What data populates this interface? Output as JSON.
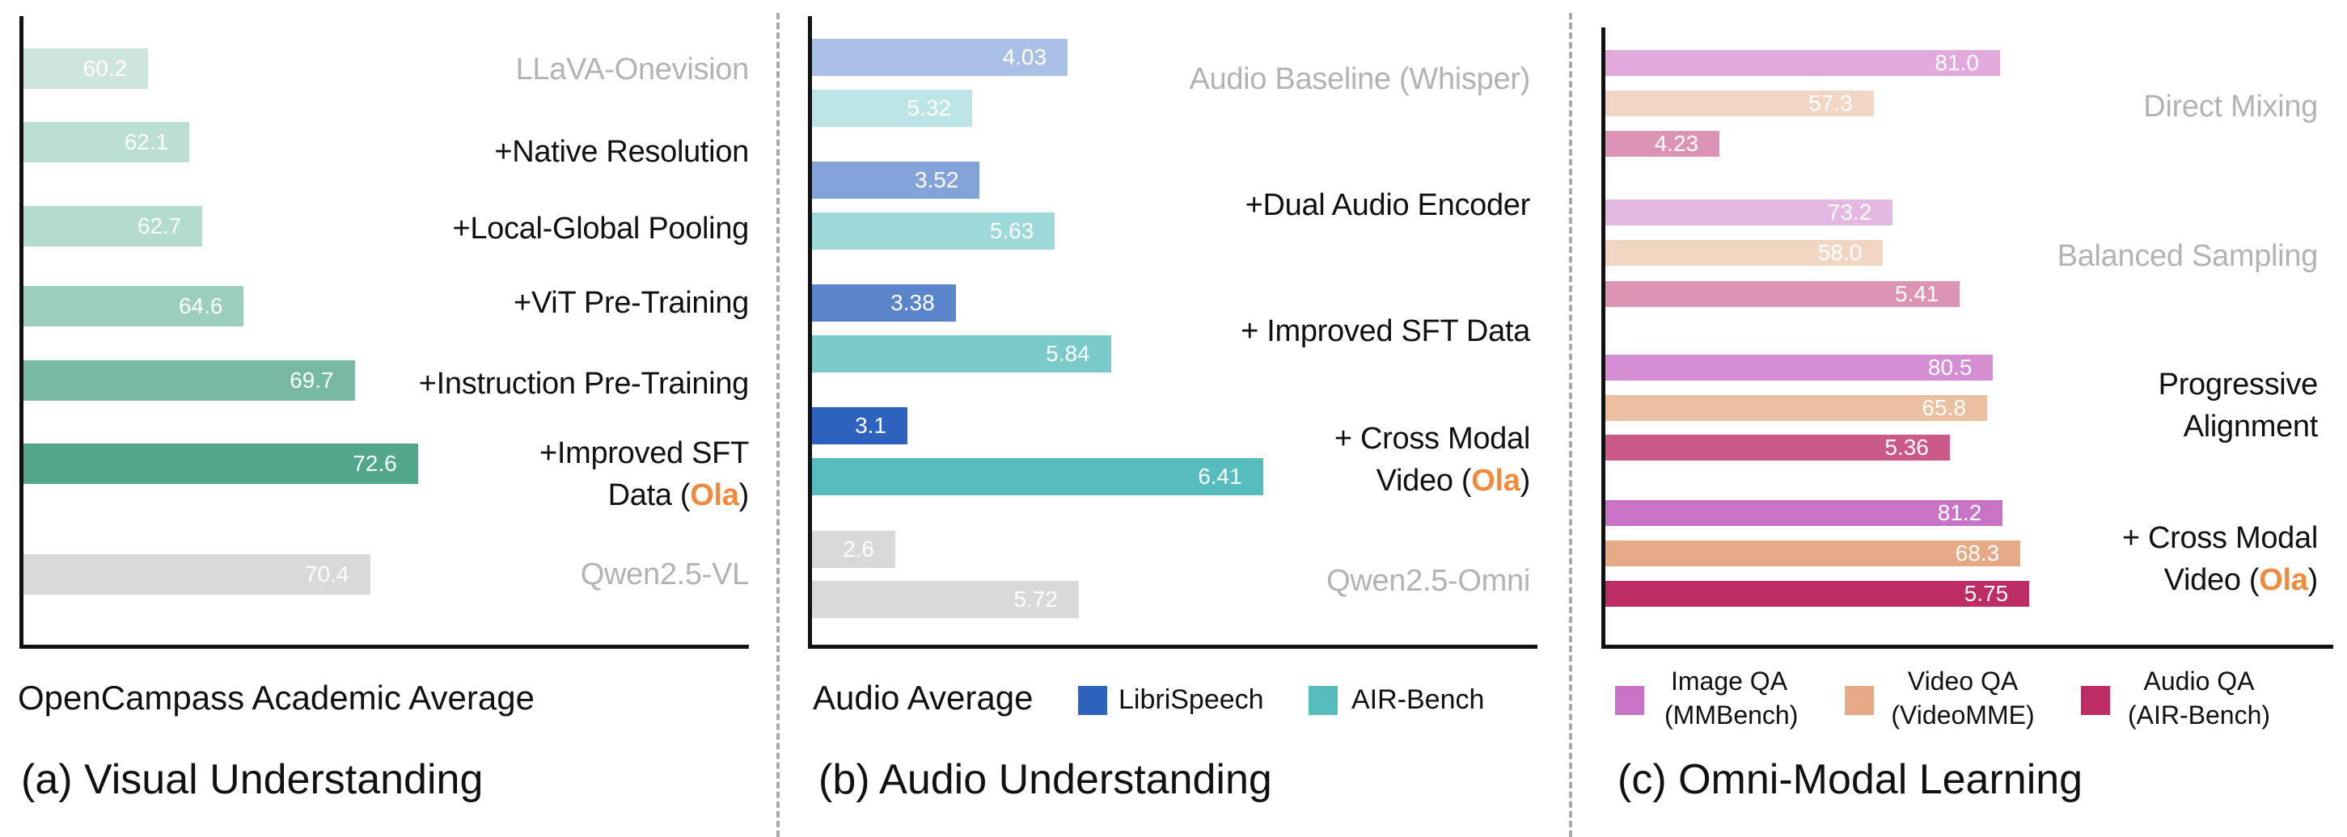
{
  "chart_data": [
    {
      "type": "bar",
      "orientation": "horizontal",
      "title": "(a)  Visual Understanding",
      "xlabel": "OpenCampass Academic Average",
      "categories": [
        {
          "lines": [
            [
              "LLaVA-Onevision"
            ]
          ],
          "muted": true
        },
        {
          "lines": [
            [
              "+Native Resolution"
            ]
          ]
        },
        {
          "lines": [
            [
              "+Local-Global Pooling"
            ]
          ]
        },
        {
          "lines": [
            [
              "+ViT Pre-Training"
            ]
          ]
        },
        {
          "lines": [
            [
              "+Instruction Pre-Training"
            ]
          ]
        },
        {
          "lines": [
            [
              "+Improved SFT"
            ],
            [
              "Data (",
              "Ola",
              ")"
            ]
          ]
        },
        {
          "lines": [
            [
              "Qwen2.5-VL"
            ]
          ],
          "muted": true
        }
      ],
      "values": [
        60.2,
        62.1,
        62.7,
        64.6,
        69.7,
        72.6,
        70.4
      ],
      "value_labels": [
        "60.2",
        "62.1",
        "62.7",
        "64.6",
        "69.7",
        "72.6",
        "70.4"
      ],
      "colors": [
        "#cde5de",
        "#bcdfd4",
        "#b3dccf",
        "#9bcebf",
        "#78b9a3",
        "#52a68b",
        "#d9d9d9"
      ]
    },
    {
      "type": "bar",
      "orientation": "horizontal",
      "title": "(b)  Audio Understanding",
      "xlabel": "Audio Average",
      "categories": [
        {
          "lines": [
            [
              "Audio Baseline (Whisper)"
            ]
          ],
          "muted": true
        },
        {
          "lines": [
            [
              "+Dual Audio Encoder"
            ]
          ]
        },
        {
          "lines": [
            [
              "+ Improved SFT Data"
            ]
          ]
        },
        {
          "lines": [
            [
              "+ Cross Modal"
            ],
            [
              "Video (",
              "Ola",
              ")"
            ]
          ]
        },
        {
          "lines": [
            [
              "Qwen2.5-Omni"
            ]
          ],
          "muted": true
        }
      ],
      "series": [
        {
          "name": "LibriSpeech",
          "values": [
            4.03,
            3.52,
            3.38,
            3.1,
            2.6
          ],
          "value_labels": [
            "4.03",
            "3.52",
            "3.38",
            "3.1",
            "2.6"
          ],
          "colors": [
            "#a9bfe3",
            "#84a3d8",
            "#5b85cb",
            "#2d62bf",
            "#d9d9d9"
          ],
          "legend_color": "#2d62bf"
        },
        {
          "name": "AIR-Bench",
          "values": [
            5.32,
            5.63,
            5.84,
            6.41,
            5.72
          ],
          "value_labels": [
            "5.32",
            "5.63",
            "5.84",
            "6.41",
            "5.72"
          ],
          "colors": [
            "#bde5e5",
            "#9dd9d9",
            "#7bcaca",
            "#56bcbd",
            "#d9d9d9"
          ],
          "legend_color": "#56bcbd"
        }
      ],
      "legend_position": "bottom"
    },
    {
      "type": "bar",
      "orientation": "horizontal",
      "title": "(c)  Omni-Modal Learning",
      "categories": [
        {
          "lines": [
            [
              "Direct Mixing"
            ]
          ],
          "muted": true
        },
        {
          "lines": [
            [
              "Balanced Sampling"
            ]
          ],
          "muted": true
        },
        {
          "lines": [
            [
              "Progressive"
            ],
            [
              "Alignment"
            ]
          ]
        },
        {
          "lines": [
            [
              "+ Cross Modal"
            ],
            [
              "Video (",
              "Ola",
              ")"
            ]
          ]
        }
      ],
      "series": [
        {
          "name": "Image QA (MMBench)",
          "name_lines": [
            "Image QA",
            "(MMBench)"
          ],
          "values": [
            81.0,
            73.2,
            80.5,
            81.2
          ],
          "value_labels": [
            "81.0",
            "73.2",
            "80.5",
            "81.2"
          ],
          "colors": [
            "#e1a9dc",
            "#e5b8e2",
            "#d38fd1",
            "#c873c6"
          ],
          "legend_color": "#c873c6"
        },
        {
          "name": "Video QA (VideoMME)",
          "name_lines": [
            "Video QA",
            "(VideoMME)"
          ],
          "values": [
            57.3,
            58.0,
            65.8,
            68.3
          ],
          "value_labels": [
            "57.3",
            "58.0",
            "65.8",
            "68.3"
          ],
          "colors": [
            "#f2d6c4",
            "#f2d6c4",
            "#ecbfa0",
            "#e6ab86"
          ],
          "legend_color": "#e6ab86"
        },
        {
          "name": "Audio QA (AIR-Bench)",
          "name_lines": [
            "Audio QA",
            "(AIR-Bench)"
          ],
          "values": [
            4.23,
            5.41,
            5.36,
            5.75
          ],
          "value_labels": [
            "4.23",
            "5.41",
            "5.36",
            "5.75"
          ],
          "colors": [
            "#dd93b3",
            "#dd93b3",
            "#cb5a89",
            "#be2c65"
          ],
          "legend_color": "#be2c65"
        }
      ],
      "legend_position": "bottom"
    }
  ],
  "colors": {
    "highlight": "#f08a3c",
    "muted_text": "#b3b3b3",
    "divider": "#aaaaaa"
  }
}
